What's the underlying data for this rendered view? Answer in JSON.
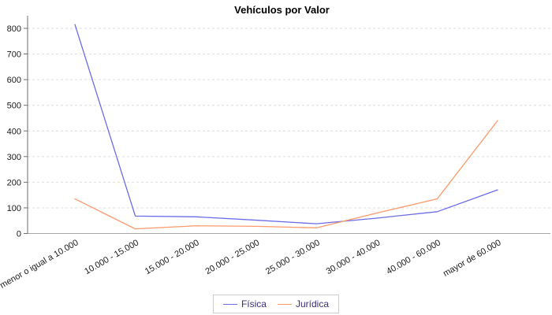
{
  "chart_data": {
    "type": "line",
    "title": "Vehículos por Valor",
    "categories": [
      "menor o igual a 10.000",
      "10.000 - 15.000",
      "15.000 - 20.000",
      "20.000 - 25.000",
      "25.000 - 30.000",
      "30.000 - 40.000",
      "40.000 - 60.000",
      "mayor de 60.000"
    ],
    "series": [
      {
        "name": "Física",
        "color": "#6b6be8",
        "values": [
          815,
          68,
          65,
          52,
          38,
          60,
          85,
          170
        ]
      },
      {
        "name": "Jurídica",
        "color": "#fb9a6c",
        "values": [
          135,
          18,
          30,
          28,
          22,
          80,
          135,
          440
        ]
      }
    ],
    "xlabel": "",
    "ylabel": "",
    "ylim": [
      0,
      800
    ],
    "yticks": [
      0,
      100,
      200,
      300,
      400,
      500,
      600,
      700,
      800
    ],
    "grid": "horizontal-dashed",
    "legend_position": "bottom",
    "x_label_rotation_deg": -30
  },
  "style_colors": {
    "gridline": "#dedede",
    "x_axis_line": "#a8a8a8",
    "y_axis_line": "#6e6e6e",
    "tick_label": "#1a1a1a",
    "legend_text": "#3b2e7a",
    "legend_border": "#cccccc",
    "background": "#ffffff"
  }
}
